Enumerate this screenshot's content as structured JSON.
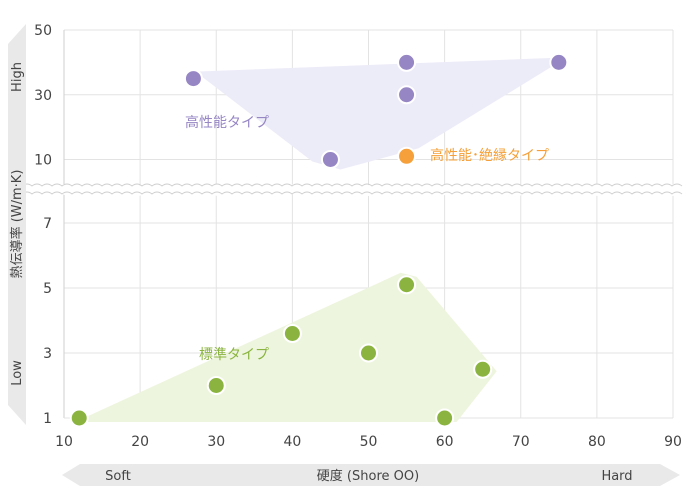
{
  "chart_data": {
    "type": "scatter",
    "title": "",
    "xlabel": "硬度 (Shore OO)",
    "ylabel": "熱伝導率 (W/m·K)",
    "x_band_left": "Soft",
    "x_band_right": "Hard",
    "y_band_top": "High",
    "y_band_bottom": "Low",
    "xlim": [
      10,
      90
    ],
    "x_ticks": [
      "10",
      "20",
      "30",
      "40",
      "50",
      "60",
      "70",
      "80",
      "90"
    ],
    "y_ticks_lower": [
      "1",
      "3",
      "5",
      "7"
    ],
    "y_ticks_upper": [
      "10",
      "30",
      "50"
    ],
    "y_scale": "broken axis: linear 1–7 below break, linear 10–50 above break",
    "grid": true,
    "colors": {
      "standard": "#8ab43f",
      "standard_fill": "#eef5de",
      "high": "#9686c4",
      "high_fill": "#ecebf8",
      "insulating": "#f5a03a",
      "grid": "#e3e3e3",
      "band": "#e9e9e9"
    },
    "series": [
      {
        "name": "標準タイプ",
        "color": "#8ab43f",
        "points": [
          {
            "x": 12,
            "y": 1.0
          },
          {
            "x": 30,
            "y": 2.0
          },
          {
            "x": 40,
            "y": 3.6
          },
          {
            "x": 50,
            "y": 3.0
          },
          {
            "x": 55,
            "y": 5.1
          },
          {
            "x": 60,
            "y": 1.0
          },
          {
            "x": 65,
            "y": 2.5
          }
        ]
      },
      {
        "name": "高性能タイプ",
        "color": "#9686c4",
        "points": [
          {
            "x": 27,
            "y": 35
          },
          {
            "x": 45,
            "y": 10
          },
          {
            "x": 55,
            "y": 40
          },
          {
            "x": 55,
            "y": 30
          },
          {
            "x": 75,
            "y": 40
          }
        ]
      },
      {
        "name": "高性能･絶縁タイプ",
        "color": "#f5a03a",
        "points": [
          {
            "x": 55,
            "y": 11
          }
        ]
      }
    ]
  }
}
